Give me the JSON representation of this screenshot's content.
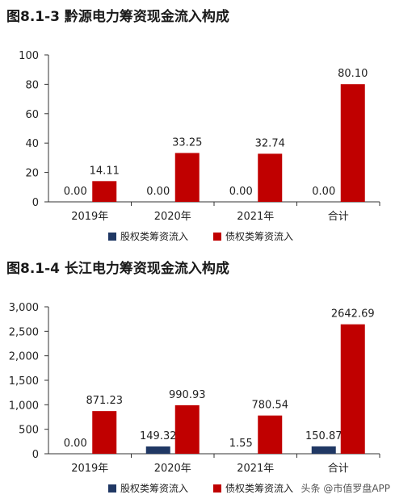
{
  "watermark": "头条 @市值罗盘APP",
  "colors": {
    "equity": "#203864",
    "debt": "#C00000",
    "axis": "#333333",
    "gridText": "#222222"
  },
  "chart_data": [
    {
      "type": "bar",
      "title": "图8.1-3 黔源电力筹资现金流入构成",
      "categories": [
        "2019年",
        "2020年",
        "2021年",
        "合计"
      ],
      "series": [
        {
          "name": "股权类筹资流入",
          "values": [
            0,
            0,
            0,
            0
          ],
          "labels": [
            "0.00",
            "0.00",
            "0.00",
            "0.00"
          ]
        },
        {
          "name": "债权类筹资流入",
          "values": [
            14.11,
            33.25,
            32.74,
            80.1
          ],
          "labels": [
            "14.11",
            "33.25",
            "32.74",
            "80.10"
          ]
        }
      ],
      "ylim": [
        0,
        100
      ],
      "yticks": [
        0,
        20,
        40,
        60,
        80,
        100
      ],
      "ytick_labels": [
        "0",
        "20",
        "40",
        "60",
        "80",
        "100"
      ],
      "legend_position": "bottom",
      "grid": false
    },
    {
      "type": "bar",
      "title": "图8.1-4 长江电力筹资现金流入构成",
      "categories": [
        "2019年",
        "2020年",
        "2021年",
        "合计"
      ],
      "series": [
        {
          "name": "股权类筹资流入",
          "values": [
            0,
            149.32,
            1.55,
            150.87
          ],
          "labels": [
            "0.00",
            "149.32",
            "1.55",
            "150.87"
          ]
        },
        {
          "name": "债权类筹资流入",
          "values": [
            871.23,
            990.93,
            780.54,
            2642.69
          ],
          "labels": [
            "871.23",
            "990.93",
            "780.54",
            "2642.69"
          ]
        }
      ],
      "ylim": [
        0,
        3000
      ],
      "yticks": [
        0,
        500,
        1000,
        1500,
        2000,
        2500,
        3000
      ],
      "ytick_labels": [
        "0",
        "500",
        "1,000",
        "1,500",
        "2,000",
        "2,500",
        "3,000"
      ],
      "legend_position": "bottom",
      "grid": false
    }
  ]
}
